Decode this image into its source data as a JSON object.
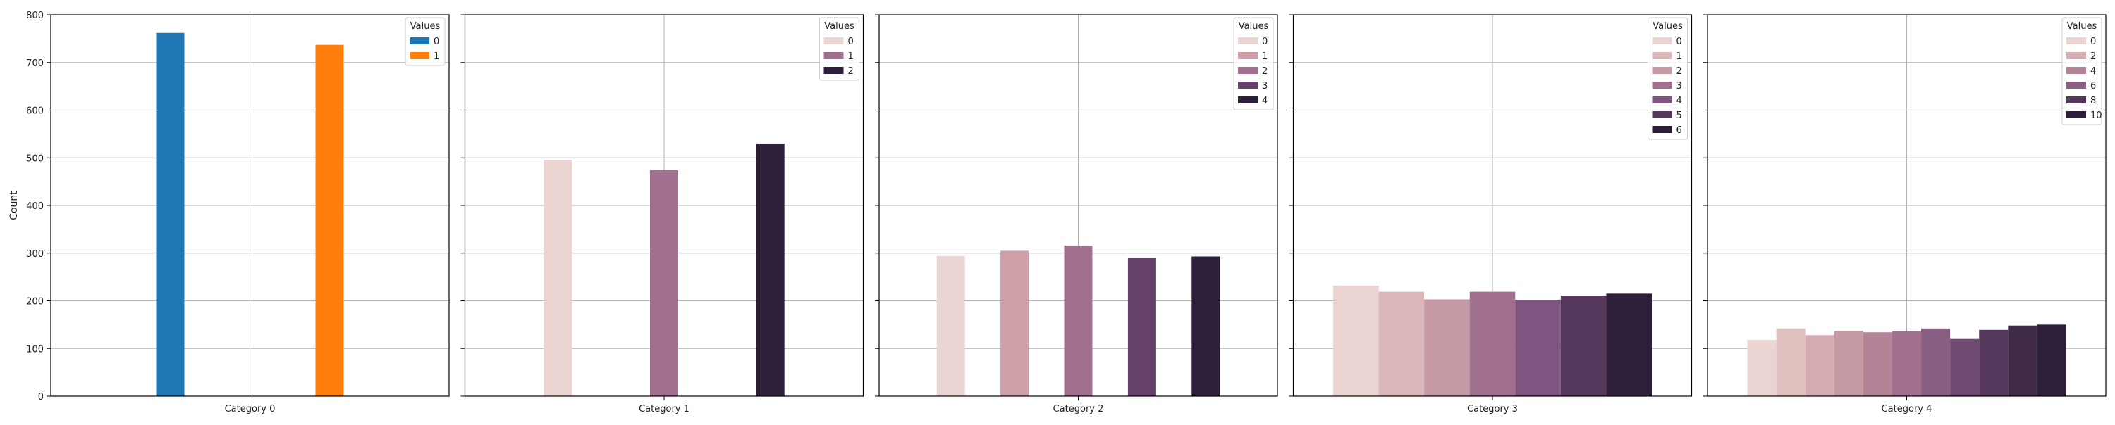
{
  "chart_data": {
    "type": "bar",
    "ylabel": "Count",
    "ylim": [
      0,
      800
    ],
    "yticks": [
      0,
      100,
      200,
      300,
      400,
      500,
      600,
      700,
      800
    ],
    "grid": true,
    "legend_title": "Values",
    "legend_position": "top-right",
    "panels": [
      {
        "category": "Category 0",
        "hue_levels": [
          "0",
          "1"
        ],
        "series": [
          {
            "name": "0",
            "value": 762,
            "color": "#1f77b4"
          },
          {
            "name": "1",
            "value": 737,
            "color": "#ff7f0e"
          }
        ]
      },
      {
        "category": "Category 1",
        "hue_levels": [
          "0",
          "1",
          "2"
        ],
        "series": [
          {
            "name": "0",
            "value": 496,
            "color": "#ead5d3"
          },
          {
            "name": "1",
            "value": 474,
            "color": "#a0708e"
          },
          {
            "name": "2",
            "value": 530,
            "color": "#2d1e3a"
          }
        ]
      },
      {
        "category": "Category 2",
        "hue_levels": [
          "0",
          "1",
          "2",
          "3",
          "4"
        ],
        "series": [
          {
            "name": "0",
            "value": 294,
            "color": "#ead5d3"
          },
          {
            "name": "1",
            "value": 305,
            "color": "#cfa0a7"
          },
          {
            "name": "2",
            "value": 316,
            "color": "#a0708e"
          },
          {
            "name": "3",
            "value": 290,
            "color": "#66426b"
          },
          {
            "name": "4",
            "value": 293,
            "color": "#2d1e3a"
          }
        ]
      },
      {
        "category": "Category 3",
        "hue_levels": [
          "0",
          "1",
          "2",
          "3",
          "4",
          "5",
          "6"
        ],
        "series": [
          {
            "name": "0",
            "value": 232,
            "color": "#ead5d3"
          },
          {
            "name": "1",
            "value": 219,
            "color": "#dcb7b9"
          },
          {
            "name": "2",
            "value": 203,
            "color": "#c59aa4"
          },
          {
            "name": "3",
            "value": 219,
            "color": "#a0708e"
          },
          {
            "name": "4",
            "value": 202,
            "color": "#7d5580"
          },
          {
            "name": "5",
            "value": 211,
            "color": "#55385c"
          },
          {
            "name": "6",
            "value": 215,
            "color": "#2d1e3a"
          }
        ]
      },
      {
        "category": "Category 4",
        "hue_levels": [
          "0",
          "1",
          "2",
          "3",
          "4",
          "5",
          "6",
          "7",
          "8",
          "9",
          "10"
        ],
        "legend_entries": [
          "0",
          "2",
          "4",
          "6",
          "8",
          "10"
        ],
        "series": [
          {
            "name": "0",
            "value": 118,
            "color": "#ead5d3"
          },
          {
            "name": "1",
            "value": 142,
            "color": "#e1c0c0"
          },
          {
            "name": "2",
            "value": 128,
            "color": "#d6adb3"
          },
          {
            "name": "3",
            "value": 137,
            "color": "#c59aa4"
          },
          {
            "name": "4",
            "value": 134,
            "color": "#b38397"
          },
          {
            "name": "5",
            "value": 136,
            "color": "#a0708e"
          },
          {
            "name": "6",
            "value": 142,
            "color": "#8a5f84"
          },
          {
            "name": "7",
            "value": 120,
            "color": "#6f4b72"
          },
          {
            "name": "8",
            "value": 139,
            "color": "#55385c"
          },
          {
            "name": "9",
            "value": 148,
            "color": "#3f2a49"
          },
          {
            "name": "10",
            "value": 150,
            "color": "#2d1e3a"
          }
        ]
      }
    ]
  }
}
